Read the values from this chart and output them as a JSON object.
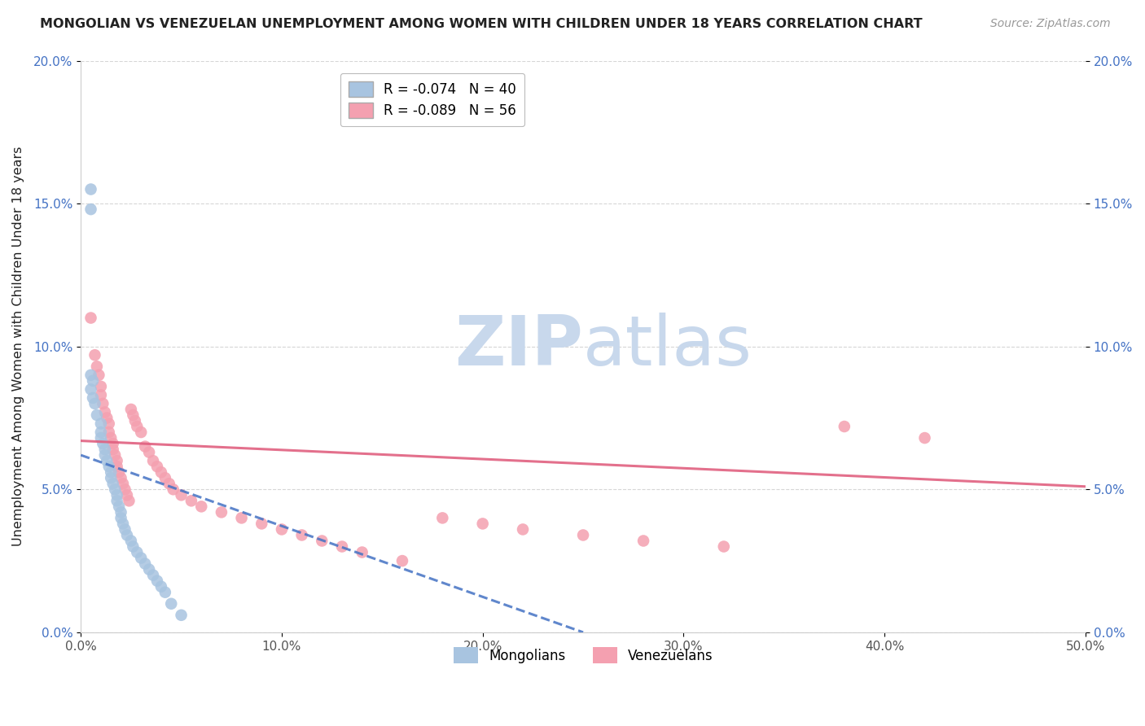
{
  "title": "MONGOLIAN VS VENEZUELAN UNEMPLOYMENT AMONG WOMEN WITH CHILDREN UNDER 18 YEARS CORRELATION CHART",
  "source": "Source: ZipAtlas.com",
  "ylabel": "Unemployment Among Women with Children Under 18 years",
  "xlabel": "",
  "xlim": [
    0,
    0.5
  ],
  "ylim": [
    0,
    0.2
  ],
  "xticks": [
    0.0,
    0.1,
    0.2,
    0.3,
    0.4,
    0.5
  ],
  "xtick_labels": [
    "0.0%",
    "10.0%",
    "20.0%",
    "30.0%",
    "40.0%",
    "50.0%"
  ],
  "yticks": [
    0.0,
    0.05,
    0.1,
    0.15,
    0.2
  ],
  "ytick_labels_left": [
    "0.0%",
    "5.0%",
    "10.0%",
    "15.0%",
    "20.0%"
  ],
  "ytick_labels_right": [
    "0.0%",
    "5.0%",
    "10.0%",
    "15.0%",
    "20.0%"
  ],
  "mongolian_color": "#a8c4e0",
  "venezuelan_color": "#f4a0b0",
  "mongolian_line_color": "#4472c4",
  "venezuelan_line_color": "#e06080",
  "mongolian_R": -0.074,
  "mongolian_N": 40,
  "venezuelan_R": -0.089,
  "venezuelan_N": 56,
  "mongolian_scatter_x": [
    0.005,
    0.005,
    0.005,
    0.005,
    0.006,
    0.006,
    0.007,
    0.008,
    0.01,
    0.01,
    0.01,
    0.011,
    0.012,
    0.012,
    0.013,
    0.014,
    0.015,
    0.015,
    0.016,
    0.017,
    0.018,
    0.018,
    0.019,
    0.02,
    0.02,
    0.021,
    0.022,
    0.023,
    0.025,
    0.026,
    0.028,
    0.03,
    0.032,
    0.034,
    0.036,
    0.038,
    0.04,
    0.042,
    0.045,
    0.05
  ],
  "mongolian_scatter_y": [
    0.155,
    0.148,
    0.09,
    0.085,
    0.088,
    0.082,
    0.08,
    0.076,
    0.073,
    0.07,
    0.068,
    0.066,
    0.064,
    0.062,
    0.06,
    0.058,
    0.056,
    0.054,
    0.052,
    0.05,
    0.048,
    0.046,
    0.044,
    0.042,
    0.04,
    0.038,
    0.036,
    0.034,
    0.032,
    0.03,
    0.028,
    0.026,
    0.024,
    0.022,
    0.02,
    0.018,
    0.016,
    0.014,
    0.01,
    0.006
  ],
  "venezuelan_scatter_x": [
    0.005,
    0.007,
    0.008,
    0.009,
    0.01,
    0.01,
    0.011,
    0.012,
    0.013,
    0.014,
    0.014,
    0.015,
    0.016,
    0.016,
    0.017,
    0.018,
    0.018,
    0.019,
    0.02,
    0.021,
    0.022,
    0.023,
    0.024,
    0.025,
    0.026,
    0.027,
    0.028,
    0.03,
    0.032,
    0.034,
    0.036,
    0.038,
    0.04,
    0.042,
    0.044,
    0.046,
    0.05,
    0.055,
    0.06,
    0.07,
    0.08,
    0.09,
    0.1,
    0.11,
    0.12,
    0.13,
    0.14,
    0.16,
    0.18,
    0.2,
    0.22,
    0.25,
    0.28,
    0.32,
    0.38,
    0.42
  ],
  "venezuelan_scatter_y": [
    0.11,
    0.097,
    0.093,
    0.09,
    0.086,
    0.083,
    0.08,
    0.077,
    0.075,
    0.073,
    0.07,
    0.068,
    0.066,
    0.064,
    0.062,
    0.06,
    0.058,
    0.056,
    0.054,
    0.052,
    0.05,
    0.048,
    0.046,
    0.078,
    0.076,
    0.074,
    0.072,
    0.07,
    0.065,
    0.063,
    0.06,
    0.058,
    0.056,
    0.054,
    0.052,
    0.05,
    0.048,
    0.046,
    0.044,
    0.042,
    0.04,
    0.038,
    0.036,
    0.034,
    0.032,
    0.03,
    0.028,
    0.025,
    0.04,
    0.038,
    0.036,
    0.034,
    0.032,
    0.03,
    0.072,
    0.068
  ],
  "mongolian_line_x0": 0.0,
  "mongolian_line_y0": 0.062,
  "mongolian_line_x1": 0.25,
  "mongolian_line_y1": 0.0,
  "venezuelan_line_x0": 0.0,
  "venezuelan_line_y0": 0.067,
  "venezuelan_line_x1": 0.5,
  "venezuelan_line_y1": 0.051,
  "background_color": "#ffffff",
  "grid_color": "#cccccc",
  "watermark_zip_color": "#c8d8ec",
  "watermark_atlas_color": "#c8d8ec"
}
